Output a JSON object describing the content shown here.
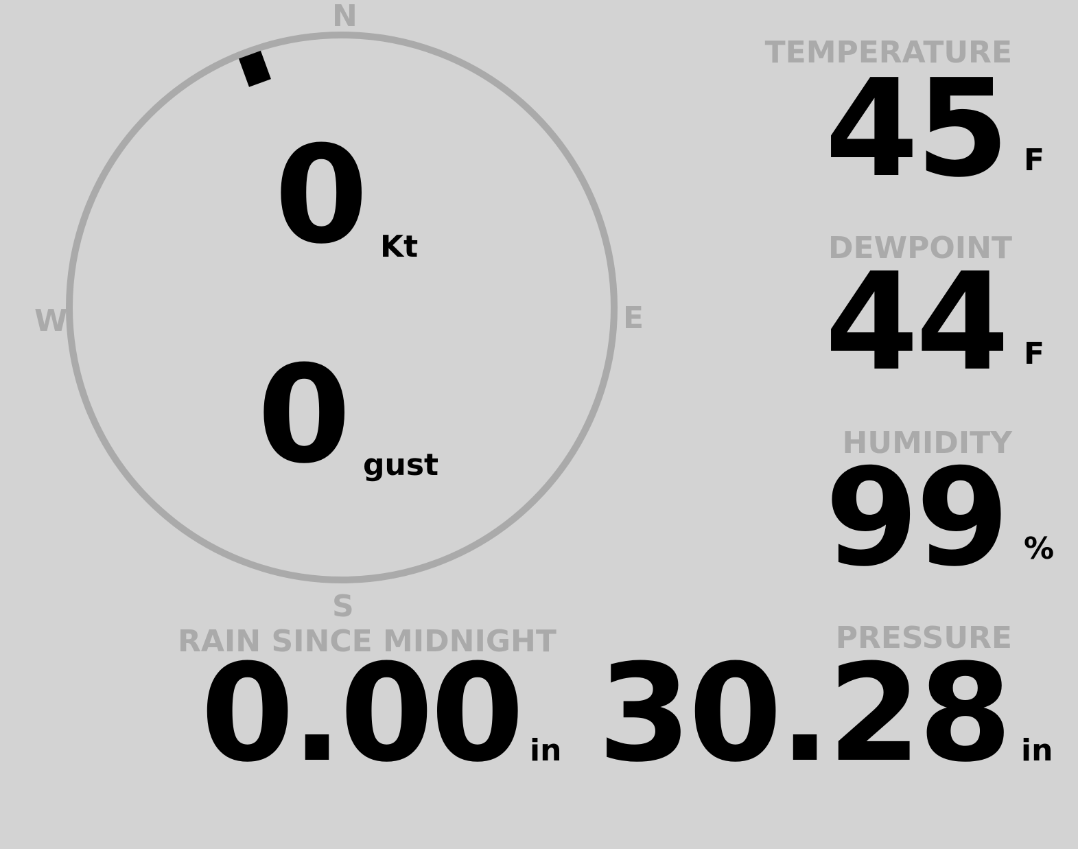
{
  "compass": {
    "north": "N",
    "south": "S",
    "east": "E",
    "west": "W",
    "wind_direction_deg": 340,
    "ring_color": "#aaaaaa",
    "marker_color": "#000000"
  },
  "wind": {
    "speed": "0",
    "speed_unit": "Kt",
    "gust": "0",
    "gust_unit": "gust"
  },
  "temperature": {
    "label": "TEMPERATURE",
    "value": "45",
    "unit": "F"
  },
  "dewpoint": {
    "label": "DEWPOINT",
    "value": "44",
    "unit": "F"
  },
  "humidity": {
    "label": "HUMIDITY",
    "value": "99",
    "unit": "%"
  },
  "pressure": {
    "label": "PRESSURE",
    "value": "30.28",
    "unit": "in"
  },
  "rain": {
    "label": "RAIN SINCE MIDNIGHT",
    "value": "0.00",
    "unit": "in"
  },
  "colors": {
    "background": "#d3d3d3",
    "label": "#aaaaaa",
    "value": "#000000"
  }
}
